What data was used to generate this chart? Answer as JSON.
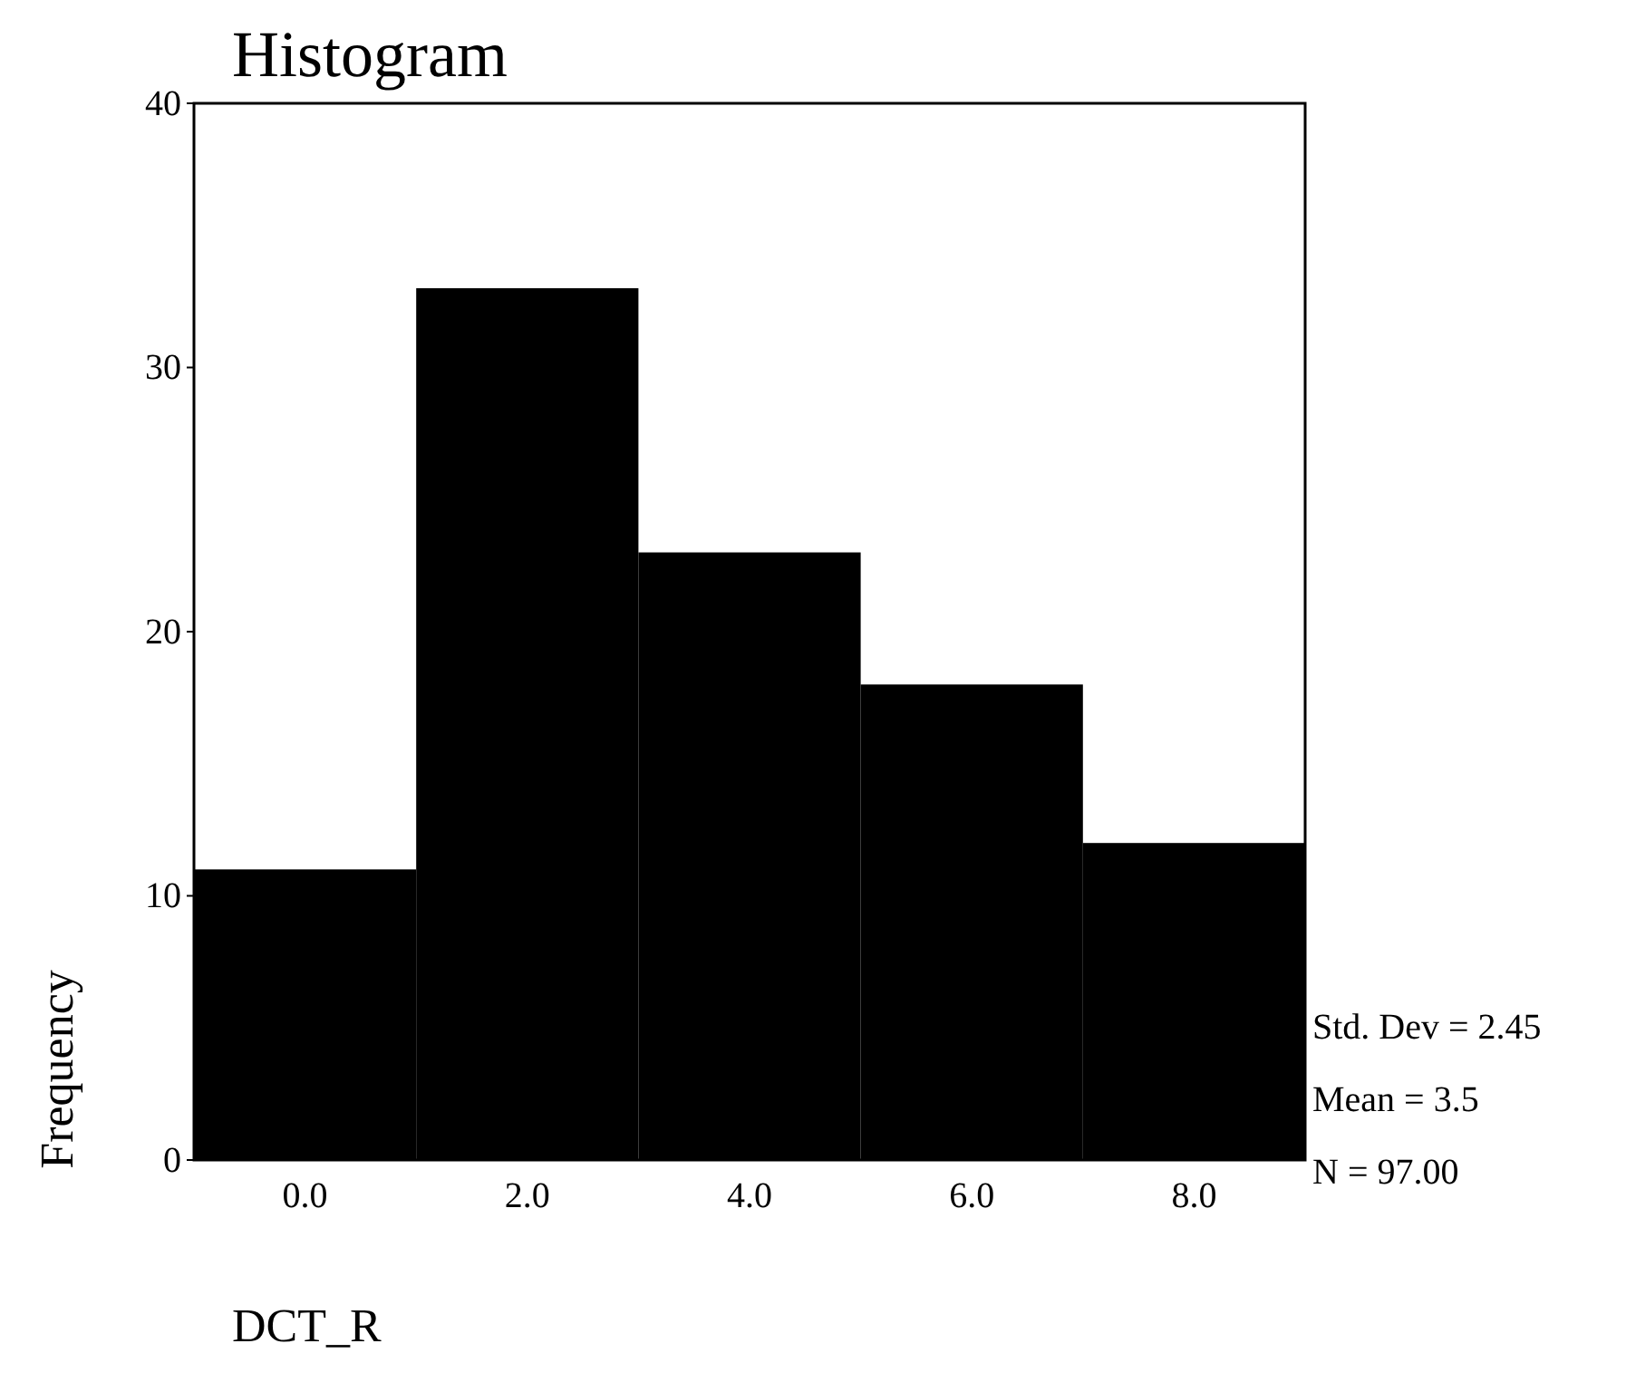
{
  "chart_data": {
    "type": "histogram",
    "title": "Histogram",
    "xlabel": "DCT_R",
    "ylabel": "Frequency",
    "bins": [
      -1,
      1,
      3,
      5,
      7,
      9
    ],
    "values": [
      11,
      33,
      23,
      18,
      12
    ],
    "color": "#000000",
    "xlim": [
      -1,
      9
    ],
    "xticks": [
      {
        "value": 0,
        "label": "0.0"
      },
      {
        "value": 2,
        "label": "2.0"
      },
      {
        "value": 4,
        "label": "4.0"
      },
      {
        "value": 6,
        "label": "6.0"
      },
      {
        "value": 8,
        "label": "8.0"
      }
    ],
    "ylim": [
      0,
      40
    ],
    "yticks": [
      0,
      10,
      20,
      30,
      40
    ],
    "grid": false,
    "annotations": [
      "Std. Dev = 2.45",
      "Mean = 3.5",
      "N = 97.00"
    ]
  }
}
